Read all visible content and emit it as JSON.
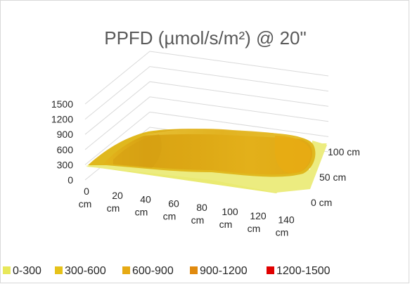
{
  "chart_data": {
    "type": "surface",
    "title": "PPFD (µmol/s/m²) @ 20\"",
    "z_ticks": [
      "0",
      "300",
      "600",
      "900",
      "1200",
      "1500"
    ],
    "z_range": [
      0,
      1500
    ],
    "x_ticks": [
      {
        "value": "0",
        "unit": "cm"
      },
      {
        "value": "20",
        "unit": "cm"
      },
      {
        "value": "40",
        "unit": "cm"
      },
      {
        "value": "60",
        "unit": "cm"
      },
      {
        "value": "80",
        "unit": "cm"
      },
      {
        "value": "100",
        "unit": "cm"
      },
      {
        "value": "120",
        "unit": "cm"
      },
      {
        "value": "140",
        "unit": "cm"
      }
    ],
    "y_ticks": [
      "0 cm",
      "50 cm",
      "100 cm"
    ],
    "legend_position": "bottom",
    "bands": [
      {
        "label": "0-300",
        "color": "#e8e85a"
      },
      {
        "label": "300-600",
        "color": "#e6c21a"
      },
      {
        "label": "600-900",
        "color": "#e6aa14"
      },
      {
        "label": "900-1200",
        "color": "#e08a0f"
      },
      {
        "label": "1200-1500",
        "color": "#e00000"
      }
    ]
  }
}
